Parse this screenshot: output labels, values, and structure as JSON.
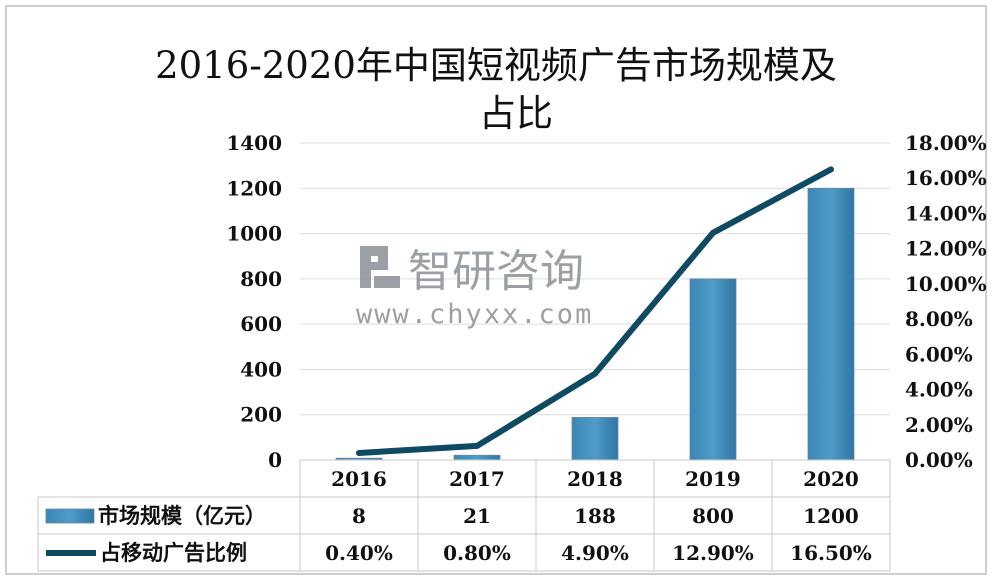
{
  "chart_data": {
    "type": "bar",
    "title_line1": "2016-2020年中国短视频广告市场规模及",
    "title_line2": "占比",
    "categories": [
      "2016",
      "2017",
      "2018",
      "2019",
      "2020"
    ],
    "series": [
      {
        "name": "市场规模（亿元）",
        "type": "bar",
        "axis": "left",
        "values": [
          8,
          21,
          188,
          800,
          1200
        ],
        "labels": [
          "8",
          "21",
          "188",
          "800",
          "1200"
        ],
        "color": "#4f9bc9"
      },
      {
        "name": "占移动广告比例",
        "type": "line",
        "axis": "right",
        "values": [
          0.4,
          0.8,
          4.9,
          12.9,
          16.5
        ],
        "labels": [
          "0.40%",
          "0.80%",
          "4.90%",
          "12.90%",
          "16.50%"
        ],
        "color": "#0f4a62"
      }
    ],
    "y_left": {
      "min": 0,
      "max": 1400,
      "ticks": [
        "0",
        "200",
        "400",
        "600",
        "800",
        "1000",
        "1200",
        "1400"
      ]
    },
    "y_right": {
      "min": 0,
      "max": 18,
      "ticks": [
        "0.00%",
        "2.00%",
        "4.00%",
        "6.00%",
        "8.00%",
        "10.00%",
        "12.00%",
        "14.00%",
        "16.00%",
        "18.00%"
      ]
    },
    "grid": true,
    "data_table": true
  },
  "watermark": {
    "name": "智研咨询",
    "url": "www.chyxx.com"
  }
}
